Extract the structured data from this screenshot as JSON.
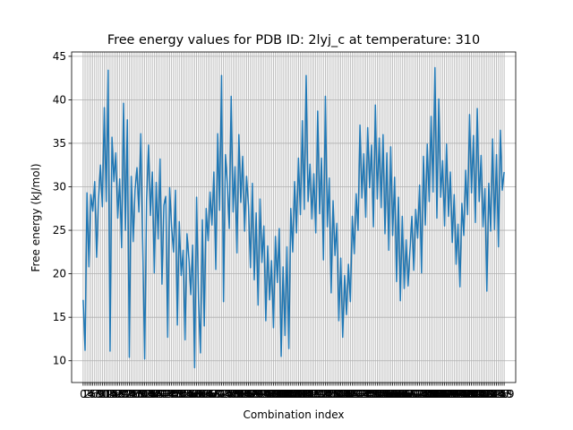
{
  "chart_data": {
    "type": "line",
    "title": "Free energy values for PDB ID: 2lyj_c at temperature: 310",
    "xlabel": "Combination index",
    "ylabel": "Free energy (kJ/mol)",
    "xlim": [
      -6,
      225
    ],
    "ylim": [
      7.5,
      45.5
    ],
    "yticks": [
      10,
      15,
      20,
      25,
      30,
      35,
      40,
      45
    ],
    "xtick_count": 220,
    "grid": true,
    "colors": {
      "line": "#1f77b4",
      "grid": "#b0b0b0"
    },
    "series": [
      {
        "values": [
          17.0,
          11.2,
          29.3,
          20.8,
          29.1,
          27.2,
          30.6,
          21.9,
          28.6,
          32.5,
          27.7,
          39.1,
          28.3,
          43.4,
          11.1,
          35.7,
          30.6,
          33.9,
          26.4,
          30.9,
          23.0,
          39.6,
          25.0,
          37.7,
          10.4,
          31.2,
          23.7,
          29.7,
          32.2,
          27.1,
          36.1,
          23.2,
          10.2,
          28.5,
          34.8,
          26.7,
          31.7,
          20.1,
          30.5,
          24.0,
          33.2,
          18.8,
          27.9,
          28.9,
          12.7,
          29.9,
          25.4,
          22.5,
          29.6,
          14.1,
          26.0,
          19.8,
          22.7,
          12.4,
          24.6,
          21.8,
          17.6,
          23.3,
          9.2,
          28.8,
          17.1,
          10.9,
          26.2,
          14.0,
          27.5,
          23.8,
          29.4,
          25.6,
          31.7,
          20.5,
          36.1,
          27.3,
          42.8,
          16.8,
          33.7,
          30.4,
          25.2,
          40.4,
          27.1,
          32.3,
          22.4,
          36.0,
          28.2,
          33.5,
          24.9,
          31.2,
          27.8,
          20.7,
          30.4,
          19.3,
          27.0,
          16.4,
          28.6,
          21.3,
          25.5,
          14.6,
          23.2,
          17.0,
          21.5,
          13.8,
          24.3,
          19.0,
          25.2,
          10.5,
          20.8,
          12.9,
          23.1,
          11.4,
          27.5,
          22.5,
          30.6,
          24.7,
          33.3,
          26.8,
          37.6,
          27.4,
          42.8,
          28.3,
          32.6,
          26.3,
          31.5,
          24.7,
          38.7,
          26.9,
          33.3,
          21.6,
          40.4,
          25.4,
          31.0,
          17.8,
          28.4,
          22.1,
          25.8,
          14.6,
          21.8,
          12.7,
          19.8,
          15.3,
          21.1,
          16.8,
          26.6,
          22.3,
          29.2,
          25.0,
          37.1,
          28.7,
          33.8,
          26.5,
          36.8,
          29.9,
          34.8,
          25.4,
          39.4,
          28.6,
          35.6,
          27.6,
          36.0,
          24.6,
          33.9,
          22.7,
          34.6,
          24.4,
          31.1,
          19.1,
          28.8,
          16.9,
          26.6,
          18.3,
          23.9,
          18.6,
          22.7,
          26.6,
          20.4,
          27.4,
          24.1,
          30.2,
          20.1,
          33.5,
          25.6,
          34.9,
          28.3,
          38.1,
          29.4,
          43.7,
          26.4,
          40.1,
          28.8,
          33.0,
          25.5,
          34.9,
          26.6,
          31.7,
          23.6,
          29.1,
          21.1,
          25.7,
          18.5,
          28.1,
          24.4,
          31.9,
          26.8,
          38.3,
          29.3,
          35.9,
          25.9,
          39.0,
          28.3,
          33.6,
          25.4,
          29.8,
          18.0,
          30.4,
          24.9,
          35.5,
          25.1,
          33.7,
          23.1,
          36.5,
          29.6,
          31.7
        ]
      }
    ]
  }
}
